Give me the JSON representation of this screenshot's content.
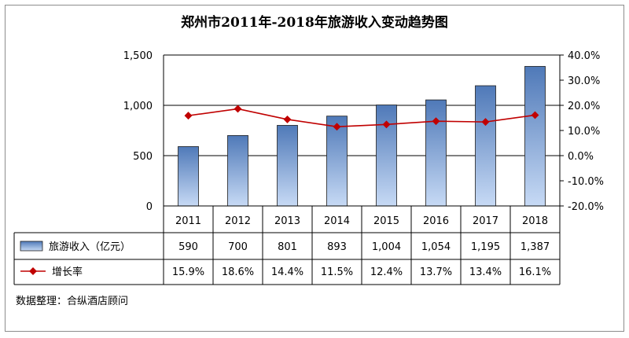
{
  "chart_data": {
    "type": "bar",
    "title": "郑州市2011年-2018年旅游收入变动趋势图",
    "categories": [
      "2011",
      "2012",
      "2013",
      "2014",
      "2015",
      "2016",
      "2017",
      "2018"
    ],
    "series": [
      {
        "name": "旅游收入（亿元）",
        "type": "bar",
        "axis": "left",
        "values": [
          590,
          700,
          801,
          893,
          1004,
          1054,
          1195,
          1387
        ],
        "labels": [
          "590",
          "700",
          "801",
          "893",
          "1,004",
          "1,054",
          "1,195",
          "1,387"
        ]
      },
      {
        "name": "增长率",
        "type": "line",
        "axis": "right",
        "values": [
          15.9,
          18.6,
          14.4,
          11.5,
          12.4,
          13.7,
          13.4,
          16.1
        ],
        "labels": [
          "15.9%",
          "18.6%",
          "14.4%",
          "11.5%",
          "12.4%",
          "13.7%",
          "13.4%",
          "16.1%"
        ]
      }
    ],
    "ylim_left": [
      0,
      1500
    ],
    "ylim_right": [
      -20,
      40
    ],
    "yticks_left": [
      "0",
      "500",
      "1,000",
      "1,500"
    ],
    "yticks_right": [
      "-20.0%",
      "-10.0%",
      "0.0%",
      "10.0%",
      "20.0%",
      "30.0%",
      "40.0%"
    ],
    "legend_placement": "data-table",
    "grid": true,
    "colors": {
      "bar_top": "#4f79b8",
      "bar_bottom": "#c7daf5",
      "line": "#c00000",
      "gridline": "#000000"
    }
  },
  "source": "数据整理：合纵酒店顾问"
}
